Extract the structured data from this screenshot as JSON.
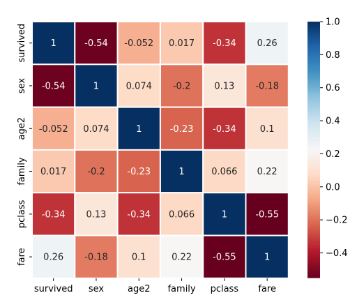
{
  "chart_data": {
    "type": "heatmap",
    "title": "",
    "xlabel": "",
    "ylabel": "",
    "x_labels": [
      "survived",
      "sex",
      "age2",
      "family",
      "pclass",
      "fare"
    ],
    "y_labels": [
      "survived",
      "sex",
      "age2",
      "family",
      "pclass",
      "fare"
    ],
    "cell_labels": [
      [
        "1",
        "-0.54",
        "-0.052",
        "0.017",
        "-0.34",
        "0.26"
      ],
      [
        "-0.54",
        "1",
        "0.074",
        "-0.2",
        "0.13",
        "-0.18"
      ],
      [
        "-0.052",
        "0.074",
        "1",
        "-0.23",
        "-0.34",
        "0.1"
      ],
      [
        "0.017",
        "-0.2",
        "-0.23",
        "1",
        "0.066",
        "0.22"
      ],
      [
        "-0.34",
        "0.13",
        "-0.34",
        "0.066",
        "1",
        "-0.55"
      ],
      [
        "0.26",
        "-0.18",
        "0.1",
        "0.22",
        "-0.55",
        "1"
      ]
    ],
    "values": [
      [
        1,
        -0.54,
        -0.052,
        0.017,
        -0.34,
        0.26
      ],
      [
        -0.54,
        1,
        0.074,
        -0.2,
        0.13,
        -0.18
      ],
      [
        -0.052,
        0.074,
        1,
        -0.23,
        -0.34,
        0.1
      ],
      [
        0.017,
        -0.2,
        -0.23,
        1,
        0.066,
        0.22
      ],
      [
        -0.34,
        0.13,
        -0.34,
        0.066,
        1,
        -0.55
      ],
      [
        0.26,
        -0.18,
        0.1,
        0.22,
        -0.55,
        1
      ]
    ],
    "colorbar": {
      "colormap": "RdBu",
      "vmin": -0.55,
      "vmax": 1.0,
      "ticks": [
        1.0,
        0.8,
        0.6,
        0.4,
        0.2,
        0.0,
        -0.2,
        -0.4
      ],
      "tick_labels": [
        "1.0",
        "0.8",
        "0.6",
        "0.4",
        "0.2",
        "0.0",
        "−0.2",
        "−0.4"
      ]
    },
    "cell_gridlines": true,
    "gridline_color": "#ffffff"
  }
}
